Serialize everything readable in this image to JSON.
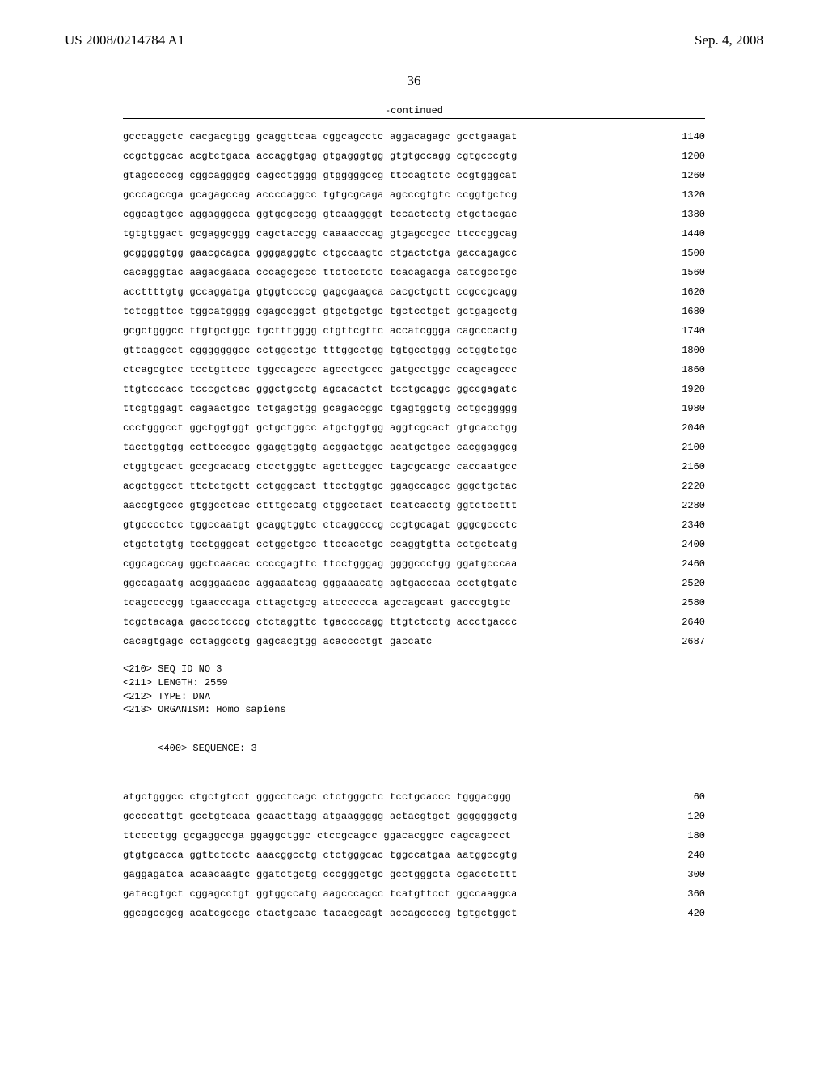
{
  "header": {
    "pub_number": "US 2008/0214784 A1",
    "pub_date": "Sep. 4, 2008"
  },
  "page_number": "36",
  "continued_label": "-continued",
  "sequence_block1": {
    "lines": [
      {
        "seq": "gcccaggctc cacgacgtgg gcaggttcaa cggcagcctc aggacagagc gcctgaagat",
        "num": "1140"
      },
      {
        "seq": "ccgctggcac acgtctgaca accaggtgag gtgagggtgg gtgtgccagg cgtgcccgtg",
        "num": "1200"
      },
      {
        "seq": "gtagcccccg cggcagggcg cagcctgggg gtgggggccg ttccagtctc ccgtgggcat",
        "num": "1260"
      },
      {
        "seq": "gcccagccga gcagagccag accccaggcc tgtgcgcaga agcccgtgtc ccggtgctcg",
        "num": "1320"
      },
      {
        "seq": "cggcagtgcc aggagggcca ggtgcgccgg gtcaaggggt tccactcctg ctgctacgac",
        "num": "1380"
      },
      {
        "seq": "tgtgtggact gcgaggcggg cagctaccgg caaaacccag gtgagccgcc ttcccggcag",
        "num": "1440"
      },
      {
        "seq": "gcgggggtgg gaacgcagca ggggagggtc ctgccaagtc ctgactctga gaccagagcc",
        "num": "1500"
      },
      {
        "seq": "cacagggtac aagacgaaca cccagcgccc ttctcctctc tcacagacga catcgcctgc",
        "num": "1560"
      },
      {
        "seq": "accttttgtg gccaggatga gtggtccccg gagcgaagca cacgctgctt ccgccgcagg",
        "num": "1620"
      },
      {
        "seq": "tctcggttcc tggcatgggg cgagccggct gtgctgctgc tgctcctgct gctgagcctg",
        "num": "1680"
      },
      {
        "seq": "gcgctgggcc ttgtgctggc tgctttgggg ctgttcgttc accatcggga cagcccactg",
        "num": "1740"
      },
      {
        "seq": "gttcaggcct cgggggggcc cctggcctgc tttggcctgg tgtgcctggg cctggtctgc",
        "num": "1800"
      },
      {
        "seq": "ctcagcgtcc tcctgttccc tggccagccc agccctgccc gatgcctggc ccagcagccc",
        "num": "1860"
      },
      {
        "seq": "ttgtcccacc tcccgctcac gggctgcctg agcacactct tcctgcaggc ggccgagatc",
        "num": "1920"
      },
      {
        "seq": "ttcgtggagt cagaactgcc tctgagctgg gcagaccggc tgagtggctg cctgcggggg",
        "num": "1980"
      },
      {
        "seq": "ccctgggcct ggctggtggt gctgctggcc atgctggtgg aggtcgcact gtgcacctgg",
        "num": "2040"
      },
      {
        "seq": "tacctggtgg ccttcccgcc ggaggtggtg acggactggc acatgctgcc cacggaggcg",
        "num": "2100"
      },
      {
        "seq": "ctggtgcact gccgcacacg ctcctgggtc agcttcggcc tagcgcacgc caccaatgcc",
        "num": "2160"
      },
      {
        "seq": "acgctggcct ttctctgctt cctgggcact ttcctggtgc ggagccagcc gggctgctac",
        "num": "2220"
      },
      {
        "seq": "aaccgtgccc gtggcctcac ctttgccatg ctggcctact tcatcacctg ggtctccttt",
        "num": "2280"
      },
      {
        "seq": "gtgcccctcc tggccaatgt gcaggtggtc ctcaggcccg ccgtgcagat gggcgccctc",
        "num": "2340"
      },
      {
        "seq": "ctgctctgtg tcctgggcat cctggctgcc ttccacctgc ccaggtgtta cctgctcatg",
        "num": "2400"
      },
      {
        "seq": "cggcagccag ggctcaacac ccccgagttc ttcctgggag ggggccctgg ggatgcccaa",
        "num": "2460"
      },
      {
        "seq": "ggccagaatg acgggaacac aggaaatcag gggaaacatg agtgacccaa ccctgtgatc",
        "num": "2520"
      },
      {
        "seq": "tcagccccgg tgaacccaga cttagctgcg atcccccca agccagcaat gacccgtgtc",
        "num": "2580"
      },
      {
        "seq": "tcgctacaga gaccctcccg ctctaggttc tgaccccagg ttgtctcctg accctgaccc",
        "num": "2640"
      },
      {
        "seq": "cacagtgagc cctaggcctg gagcacgtgg acacccctgt gaccatc",
        "num": "2687"
      }
    ]
  },
  "seq_meta": {
    "lines": [
      "<210> SEQ ID NO 3",
      "<211> LENGTH: 2559",
      "<212> TYPE: DNA",
      "<213> ORGANISM: Homo sapiens"
    ],
    "sequence_label": "<400> SEQUENCE: 3"
  },
  "sequence_block2": {
    "lines": [
      {
        "seq": "atgctgggcc ctgctgtcct gggcctcagc ctctgggctc tcctgcaccc tgggacggg",
        "num": "60"
      },
      {
        "seq": "gccccattgt gcctgtcaca gcaacttagg atgaaggggg actacgtgct gggggggctg",
        "num": "120"
      },
      {
        "seq": "ttcccctgg gcgaggccga ggaggctggc ctccgcagcc ggacacggcc cagcagccct",
        "num": "180"
      },
      {
        "seq": "gtgtgcacca ggttctcctc aaacggcctg ctctgggcac tggccatgaa aatggccgtg",
        "num": "240"
      },
      {
        "seq": "gaggagatca acaacaagtc ggatctgctg cccgggctgc gcctgggcta cgacctcttt",
        "num": "300"
      },
      {
        "seq": "gatacgtgct cggagcctgt ggtggccatg aagcccagcc tcatgttcct ggccaaggca",
        "num": "360"
      },
      {
        "seq": "ggcagccgcg acatcgccgc ctactgcaac tacacgcagt accagccccg tgtgctggct",
        "num": "420"
      }
    ]
  }
}
